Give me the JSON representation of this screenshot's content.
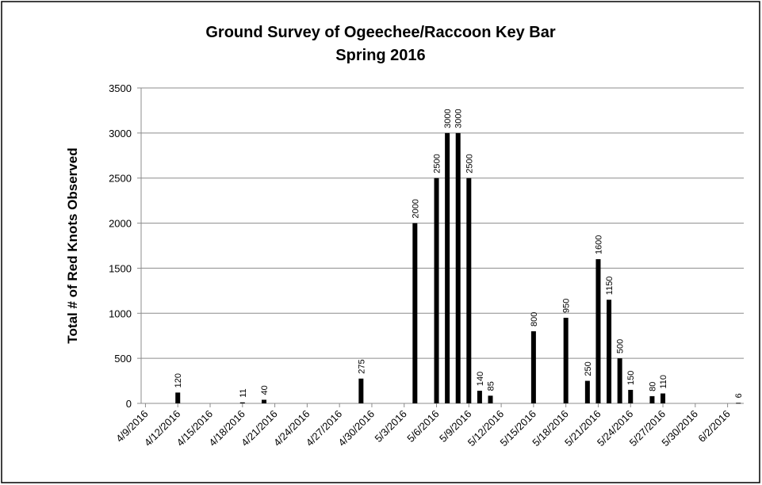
{
  "chart_data": {
    "type": "bar",
    "title": "Ground Survey of Ogeechee/Raccoon Key Bar",
    "subtitle": "Spring 2016",
    "y_label": "Total # of Red Knots Observed",
    "x": [
      "4/12/2016",
      "4/18/2016",
      "4/20/2016",
      "4/29/2016",
      "5/4/2016",
      "5/6/2016",
      "5/7/2016",
      "5/8/2016",
      "5/9/2016",
      "5/10/2016",
      "5/11/2016",
      "5/15/2016",
      "5/18/2016",
      "5/20/2016",
      "5/21/2016",
      "5/22/2016",
      "5/23/2016",
      "5/24/2016",
      "5/26/2016",
      "5/27/2016",
      "6/3/2016"
    ],
    "values": [
      120,
      11,
      40,
      275,
      2000,
      2500,
      3000,
      3000,
      2500,
      140,
      85,
      800,
      950,
      250,
      1600,
      1150,
      500,
      150,
      80,
      110,
      6
    ],
    "color": "#000000",
    "xlim": [
      "4/9/2016",
      "6/3/2016"
    ],
    "xticks": [
      "4/9/2016",
      "4/12/2016",
      "4/15/2016",
      "4/18/2016",
      "4/21/2016",
      "4/24/2016",
      "4/27/2016",
      "4/30/2016",
      "5/3/2016",
      "5/6/2016",
      "5/9/2016",
      "5/12/2016",
      "5/15/2016",
      "5/18/2016",
      "5/21/2016",
      "5/24/2016",
      "5/27/2016",
      "5/30/2016",
      "6/2/2016"
    ],
    "ylim": [
      0,
      3500
    ],
    "yticks": [
      0,
      500,
      1000,
      1500,
      2000,
      2500,
      3000,
      3500
    ],
    "grid": true
  }
}
